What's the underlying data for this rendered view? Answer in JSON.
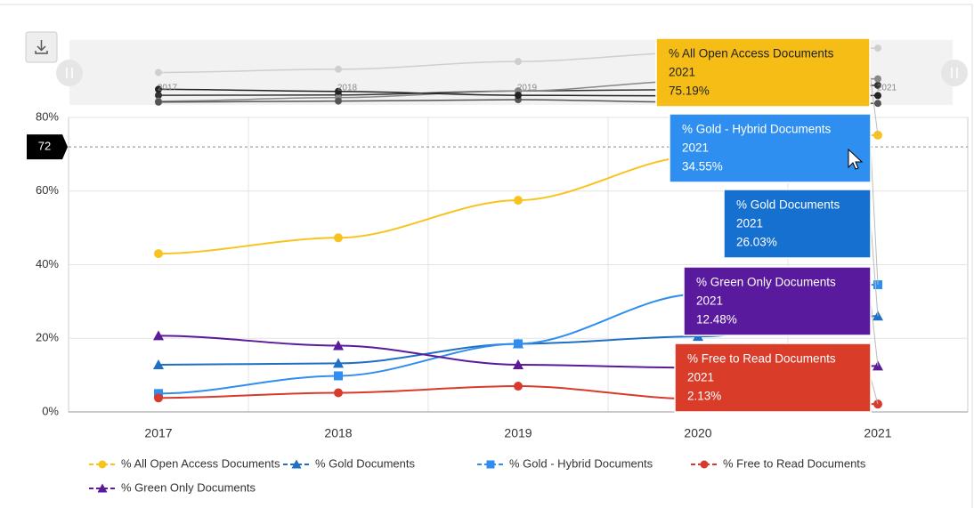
{
  "chart_data": {
    "type": "line",
    "categories": [
      "2017",
      "2018",
      "2019",
      "2020",
      "2021"
    ],
    "ylim": [
      0,
      80
    ],
    "yticks": [
      {
        "value": 0,
        "label": "0%"
      },
      {
        "value": 20,
        "label": "20%"
      },
      {
        "value": 40,
        "label": "40%"
      },
      {
        "value": 60,
        "label": "60%"
      },
      {
        "value": 80,
        "label": "80%"
      }
    ],
    "grid": true,
    "crosshair_y": 72,
    "legend": "bottom",
    "series": [
      {
        "name": "% All Open Access Documents",
        "color": "#f9c31f",
        "marker": "circle",
        "values": [
          43,
          47.3,
          57.5,
          69.5,
          75.19
        ],
        "value_labels": [
          null,
          null,
          null,
          null,
          "75.19%"
        ]
      },
      {
        "name": "% Gold Documents",
        "color": "#1f6fc5",
        "marker": "triangle",
        "values": [
          12.8,
          13.2,
          18.5,
          20.5,
          26.03
        ],
        "value_labels": [
          null,
          null,
          null,
          null,
          "26.03%"
        ]
      },
      {
        "name": "% Gold - Hybrid Documents",
        "color": "#2f8ef0",
        "marker": "square",
        "values": [
          5,
          9.8,
          18.5,
          32,
          34.55
        ],
        "value_labels": [
          null,
          null,
          null,
          null,
          "34.55%"
        ]
      },
      {
        "name": "% Free to Read Documents",
        "color": "#d83b2b",
        "marker": "circle",
        "values": [
          3.8,
          5.2,
          7,
          3.5,
          2.13
        ],
        "value_labels": [
          null,
          null,
          null,
          null,
          "2.13%"
        ]
      },
      {
        "name": "% Green Only Documents",
        "color": "#5b1a9a",
        "marker": "triangle",
        "values": [
          20.7,
          18,
          12.8,
          12,
          12.48
        ],
        "value_labels": [
          null,
          null,
          null,
          null,
          "12.48%"
        ]
      }
    ]
  }
}
